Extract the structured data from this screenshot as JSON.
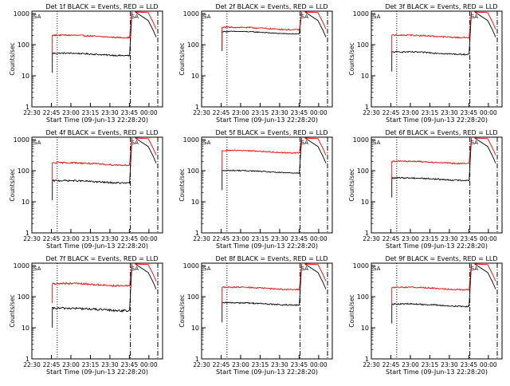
{
  "common": {
    "ylabel": "Counts/sec",
    "xlabel": "Start Time (09-Jun-13 22:28:20)",
    "x_ticks": [
      "22:30",
      "22:45",
      "23:00",
      "23:15",
      "23:30",
      "23:45",
      "00:00"
    ],
    "y_ticks": [
      "1",
      "10",
      "100",
      "1000"
    ],
    "marker_label": "SA",
    "colors": {
      "events": "#000000",
      "lld": "#ff0000"
    }
  },
  "chart_data": [
    {
      "type": "line",
      "title": "Det 1f BLACK = Events, RED = LLD",
      "ylim": [
        1,
        1200
      ],
      "series": [
        {
          "name": "Events",
          "level": 50,
          "noise": 0.05
        },
        {
          "name": "LLD",
          "level": 190,
          "noise": 0.05
        }
      ]
    },
    {
      "type": "line",
      "title": "Det 2f BLACK = Events, RED = LLD",
      "ylim": [
        1,
        1200
      ],
      "series": [
        {
          "name": "Events",
          "level": 250,
          "noise": 0.03
        },
        {
          "name": "LLD",
          "level": 340,
          "noise": 0.05
        }
      ]
    },
    {
      "type": "line",
      "title": "Det 3f BLACK = Events, RED = LLD",
      "ylim": [
        1,
        1200
      ],
      "series": [
        {
          "name": "Events",
          "level": 55,
          "noise": 0.05
        },
        {
          "name": "LLD",
          "level": 190,
          "noise": 0.05
        }
      ]
    },
    {
      "type": "line",
      "title": "Det 4f BLACK = Events, RED = LLD",
      "ylim": [
        1,
        1200
      ],
      "series": [
        {
          "name": "Events",
          "level": 45,
          "noise": 0.06
        },
        {
          "name": "LLD",
          "level": 170,
          "noise": 0.06
        }
      ]
    },
    {
      "type": "line",
      "title": "Det 5f BLACK = Events, RED = LLD",
      "ylim": [
        1,
        1200
      ],
      "series": [
        {
          "name": "Events",
          "level": 95,
          "noise": 0.04
        },
        {
          "name": "LLD",
          "level": 420,
          "noise": 0.04
        }
      ]
    },
    {
      "type": "line",
      "title": "Det 6f BLACK = Events, RED = LLD",
      "ylim": [
        1,
        1200
      ],
      "series": [
        {
          "name": "Events",
          "level": 55,
          "noise": 0.05
        },
        {
          "name": "LLD",
          "level": 190,
          "noise": 0.05
        }
      ]
    },
    {
      "type": "line",
      "title": "Det 7f BLACK = Events, RED = LLD",
      "ylim": [
        1,
        1200
      ],
      "series": [
        {
          "name": "Events",
          "level": 40,
          "noise": 0.08
        },
        {
          "name": "LLD",
          "level": 250,
          "noise": 0.07
        }
      ]
    },
    {
      "type": "line",
      "title": "Det 8f BLACK = Events, RED = LLD",
      "ylim": [
        1,
        1200
      ],
      "series": [
        {
          "name": "Events",
          "level": 60,
          "noise": 0.05
        },
        {
          "name": "LLD",
          "level": 190,
          "noise": 0.05
        }
      ]
    },
    {
      "type": "line",
      "title": "Det 9f BLACK = Events, RED = LLD",
      "ylim": [
        1,
        1200
      ],
      "series": [
        {
          "name": "Events",
          "level": 55,
          "noise": 0.05
        },
        {
          "name": "LLD",
          "level": 190,
          "noise": 0.05
        }
      ]
    }
  ]
}
